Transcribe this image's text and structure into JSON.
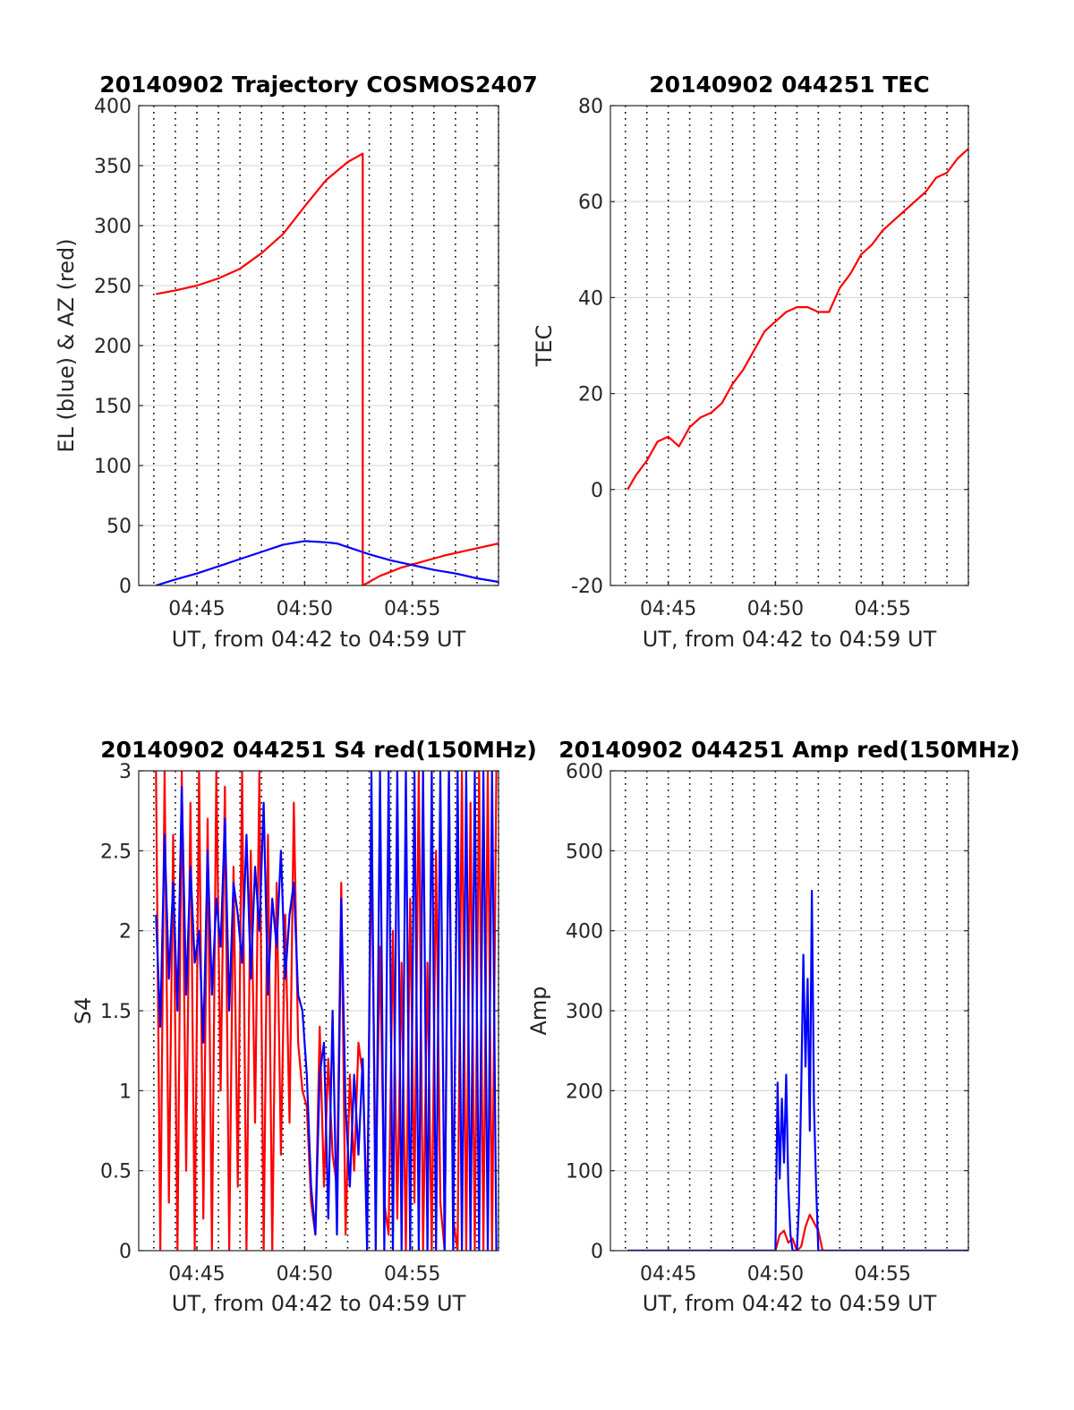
{
  "figure": {
    "background": "#ffffff"
  },
  "colors": {
    "red": "#ff0000",
    "blue": "#0000ff",
    "axis": "#262626"
  },
  "chart_data": [
    {
      "id": "trajectory",
      "type": "line",
      "title": "20140902 Trajectory COSMOS2407",
      "xlabel": "UT, from 04:42 to 04:59 UT",
      "ylabel": "EL (blue) & AZ (red)",
      "xlim": [
        4.3,
        21.0
      ],
      "ylim": [
        0,
        400
      ],
      "xticks": [
        {
          "v": 7,
          "label": "04:45"
        },
        {
          "v": 12,
          "label": "04:50"
        },
        {
          "v": 17,
          "label": "04:55"
        }
      ],
      "yticks": [
        {
          "v": 0,
          "label": "0"
        },
        {
          "v": 50,
          "label": "50"
        },
        {
          "v": 100,
          "label": "100"
        },
        {
          "v": 150,
          "label": "150"
        },
        {
          "v": 200,
          "label": "200"
        },
        {
          "v": 250,
          "label": "250"
        },
        {
          "v": 300,
          "label": "300"
        },
        {
          "v": 350,
          "label": "350"
        },
        {
          "v": 400,
          "label": "400"
        }
      ],
      "series": [
        {
          "color": "#ff0000",
          "x": [
            5.1,
            6.0,
            7.0,
            8.0,
            9.0,
            10.0,
            11.0,
            12.0,
            13.0,
            14.0,
            14.7,
            14.7,
            15.5,
            16.5,
            17.5,
            18.5,
            19.5,
            21.0
          ],
          "y": [
            243,
            246,
            250,
            256,
            264,
            277,
            293,
            316,
            338,
            353,
            360,
            0,
            8,
            15,
            20,
            25,
            29,
            35
          ]
        },
        {
          "color": "#0000ff",
          "x": [
            5.1,
            6.0,
            7.0,
            8.0,
            9.0,
            10.0,
            11.0,
            12.0,
            13.0,
            13.5,
            14.0,
            15.0,
            16.0,
            17.0,
            18.0,
            19.0,
            20.0,
            21.0
          ],
          "y": [
            0,
            5,
            10,
            16,
            22,
            28,
            34,
            37,
            36,
            35,
            32,
            26,
            21,
            17,
            13,
            10,
            6,
            3
          ]
        }
      ]
    },
    {
      "id": "tec",
      "type": "line",
      "title": "20140902 044251 TEC",
      "xlabel": "UT, from 04:42 to 04:59 UT",
      "ylabel": "TEC",
      "xlim": [
        4.3,
        21.0
      ],
      "ylim": [
        -20,
        80
      ],
      "xticks": [
        {
          "v": 7,
          "label": "04:45"
        },
        {
          "v": 12,
          "label": "04:50"
        },
        {
          "v": 17,
          "label": "04:55"
        }
      ],
      "yticks": [
        {
          "v": -20,
          "label": "-20"
        },
        {
          "v": 0,
          "label": "0"
        },
        {
          "v": 20,
          "label": "20"
        },
        {
          "v": 40,
          "label": "40"
        },
        {
          "v": 60,
          "label": "60"
        },
        {
          "v": 80,
          "label": "80"
        }
      ],
      "series": [
        {
          "color": "#ff0000",
          "x": [
            5.1,
            5.5,
            6.0,
            6.5,
            7.0,
            7.5,
            8.0,
            8.5,
            9.0,
            9.5,
            10.0,
            10.5,
            11.0,
            11.5,
            12.0,
            12.5,
            13.0,
            13.5,
            14.0,
            14.5,
            15.0,
            15.5,
            16.0,
            16.5,
            17.0,
            17.5,
            18.0,
            18.5,
            19.0,
            19.5,
            20.0,
            20.5,
            21.0
          ],
          "y": [
            0,
            3,
            6,
            10,
            11,
            9,
            13,
            15,
            16,
            18,
            22,
            25,
            29,
            33,
            35,
            37,
            38,
            38,
            37,
            37,
            42,
            45,
            49,
            51,
            54,
            56,
            58,
            60,
            62,
            65,
            66,
            69,
            71
          ]
        }
      ]
    },
    {
      "id": "s4",
      "type": "line",
      "title": "20140902 044251 S4 red(150MHz)",
      "xlabel": "UT, from 04:42 to 04:59 UT",
      "ylabel": "S4",
      "xlim": [
        4.3,
        21.0
      ],
      "ylim": [
        0,
        3
      ],
      "xticks": [
        {
          "v": 7,
          "label": "04:45"
        },
        {
          "v": 12,
          "label": "04:50"
        },
        {
          "v": 17,
          "label": "04:55"
        }
      ],
      "yticks": [
        {
          "v": 0,
          "label": "0"
        },
        {
          "v": 0.5,
          "label": "0.5"
        },
        {
          "v": 1,
          "label": "1"
        },
        {
          "v": 1.5,
          "label": "1.5"
        },
        {
          "v": 2,
          "label": "2"
        },
        {
          "v": 2.5,
          "label": "2.5"
        },
        {
          "v": 3,
          "label": "3"
        }
      ],
      "series": [
        {
          "color": "#ff0000",
          "x": [
            5.1,
            5.3,
            5.5,
            5.7,
            5.9,
            6.1,
            6.3,
            6.5,
            6.7,
            6.9,
            7.1,
            7.3,
            7.5,
            7.7,
            7.9,
            8.1,
            8.3,
            8.5,
            8.7,
            8.9,
            9.1,
            9.3,
            9.5,
            9.7,
            9.9,
            10.1,
            10.3,
            10.5,
            10.7,
            10.9,
            11.1,
            11.3,
            11.5,
            11.7,
            11.9,
            12.1,
            12.3,
            12.5,
            12.7,
            12.9,
            13.1,
            13.3,
            13.5,
            13.7,
            13.9,
            14.1,
            14.3,
            14.5,
            14.7,
            14.9,
            15.1,
            15.3,
            15.5,
            15.7,
            15.9,
            16.1,
            16.3,
            16.5,
            16.7,
            16.9,
            17.1,
            17.3,
            17.5,
            17.7,
            17.9,
            18.1,
            18.3,
            18.5,
            18.7,
            18.9,
            19.1,
            19.3,
            19.5,
            19.7,
            19.9,
            20.1,
            20.3,
            20.5,
            20.7,
            20.9
          ],
          "y": [
            3.0,
            0.0,
            3.0,
            0.3,
            2.6,
            0.0,
            3.0,
            0.5,
            2.8,
            0.0,
            3.0,
            0.2,
            2.7,
            0.0,
            3.0,
            1.0,
            2.9,
            0.0,
            2.4,
            0.4,
            3.0,
            0.0,
            2.5,
            0.8,
            3.0,
            0.0,
            2.6,
            0.0,
            2.3,
            0.6,
            2.1,
            0.8,
            2.8,
            1.3,
            1.0,
            0.9,
            0.3,
            0.1,
            1.4,
            0.4,
            1.2,
            0.6,
            0.4,
            2.3,
            0.1,
            1.1,
            0.5,
            1.3,
            1.1,
            0.2,
            2.6,
            0.4,
            1.9,
            0.3,
            0.1,
            2.0,
            0.2,
            1.8,
            0.0,
            2.2,
            0.3,
            3.0,
            0.0,
            1.8,
            0.0,
            2.5,
            0.3,
            0.0,
            3.0,
            0.2,
            0.0,
            3.0,
            0.0,
            2.8,
            0.0,
            3.0,
            0.0,
            3.0,
            0.0,
            3.0
          ]
        },
        {
          "color": "#0000ff",
          "x": [
            5.1,
            5.3,
            5.5,
            5.7,
            5.9,
            6.1,
            6.3,
            6.5,
            6.7,
            6.9,
            7.1,
            7.3,
            7.5,
            7.7,
            7.9,
            8.1,
            8.3,
            8.5,
            8.7,
            8.9,
            9.1,
            9.3,
            9.5,
            9.7,
            9.9,
            10.1,
            10.3,
            10.5,
            10.7,
            10.9,
            11.1,
            11.3,
            11.5,
            11.7,
            11.9,
            12.1,
            12.3,
            12.5,
            12.7,
            12.9,
            13.1,
            13.3,
            13.5,
            13.7,
            13.9,
            14.1,
            14.3,
            14.5,
            14.7,
            14.9,
            15.1,
            15.3,
            15.5,
            15.7,
            15.9,
            16.1,
            16.3,
            16.5,
            16.7,
            16.9,
            17.1,
            17.3,
            17.5,
            17.7,
            17.9,
            18.1,
            18.3,
            18.5,
            18.7,
            18.9,
            19.1,
            19.3,
            19.5,
            19.7,
            19.9,
            20.1,
            20.3,
            20.5,
            20.7,
            20.9
          ],
          "y": [
            2.1,
            1.4,
            2.6,
            1.7,
            2.3,
            1.5,
            2.9,
            1.6,
            2.4,
            1.8,
            2.0,
            1.3,
            2.5,
            1.6,
            2.2,
            1.9,
            2.7,
            1.5,
            2.3,
            2.1,
            1.8,
            2.6,
            1.7,
            2.4,
            2.0,
            2.8,
            1.6,
            2.2,
            1.9,
            2.5,
            1.7,
            2.1,
            2.3,
            1.6,
            1.5,
            1.1,
            0.4,
            0.1,
            1.1,
            1.3,
            0.2,
            1.5,
            0.1,
            2.2,
            0.9,
            0.4,
            1.1,
            0.6,
            1.2,
            0.0,
            3.0,
            0.0,
            3.0,
            0.0,
            3.0,
            0.0,
            3.0,
            0.0,
            3.0,
            0.0,
            3.0,
            0.0,
            3.0,
            0.0,
            3.0,
            0.0,
            3.0,
            0.0,
            3.0,
            0.0,
            3.0,
            0.0,
            3.0,
            0.0,
            3.0,
            0.0,
            3.0,
            0.0,
            3.0,
            0.0
          ]
        }
      ]
    },
    {
      "id": "amp",
      "type": "line",
      "title": "20140902 044251 Amp red(150MHz)",
      "xlabel": "UT, from 04:42 to 04:59 UT",
      "ylabel": "Amp",
      "xlim": [
        4.3,
        21.0
      ],
      "ylim": [
        0,
        600
      ],
      "xticks": [
        {
          "v": 7,
          "label": "04:45"
        },
        {
          "v": 12,
          "label": "04:50"
        },
        {
          "v": 17,
          "label": "04:55"
        }
      ],
      "yticks": [
        {
          "v": 0,
          "label": "0"
        },
        {
          "v": 100,
          "label": "100"
        },
        {
          "v": 200,
          "label": "200"
        },
        {
          "v": 300,
          "label": "300"
        },
        {
          "v": 400,
          "label": "400"
        },
        {
          "v": 500,
          "label": "500"
        },
        {
          "v": 600,
          "label": "600"
        }
      ],
      "series": [
        {
          "color": "#ff0000",
          "x": [
            5.1,
            11.0,
            12.0,
            12.2,
            12.4,
            12.6,
            12.8,
            13.0,
            13.2,
            13.4,
            13.6,
            13.8,
            14.0,
            14.2,
            14.5,
            21.0
          ],
          "y": [
            0,
            0,
            0,
            20,
            25,
            10,
            15,
            0,
            5,
            30,
            45,
            35,
            25,
            0,
            0,
            0
          ]
        },
        {
          "color": "#0000ff",
          "x": [
            5.1,
            11.0,
            12.0,
            12.1,
            12.2,
            12.3,
            12.4,
            12.5,
            12.6,
            12.7,
            12.8,
            12.9,
            13.0,
            13.1,
            13.2,
            13.3,
            13.4,
            13.5,
            13.6,
            13.7,
            13.8,
            13.9,
            14.0,
            14.1,
            14.2,
            14.5,
            21.0
          ],
          "y": [
            0,
            0,
            0,
            210,
            90,
            190,
            110,
            220,
            80,
            20,
            0,
            0,
            0,
            60,
            200,
            370,
            230,
            340,
            150,
            450,
            180,
            80,
            0,
            0,
            0,
            0,
            0
          ]
        }
      ]
    }
  ]
}
